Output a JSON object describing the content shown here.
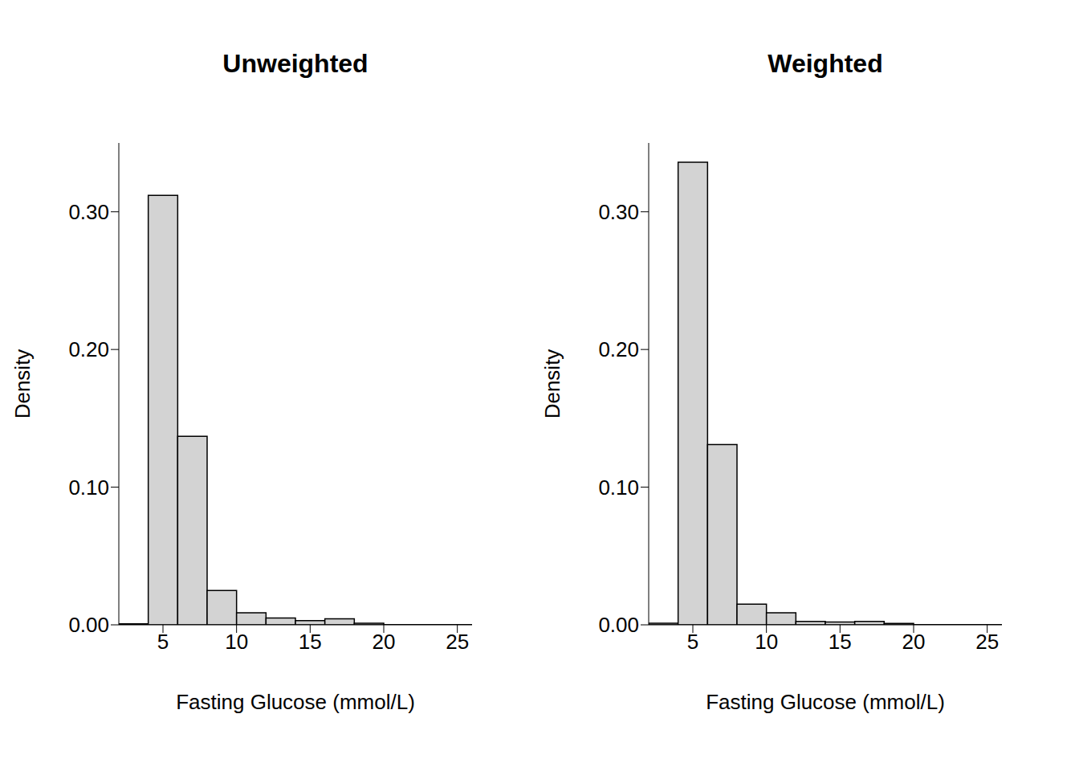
{
  "chart_data": [
    {
      "type": "histogram",
      "title": "Unweighted",
      "x_label": "Fasting Glucose (mmol/L)",
      "y_label": "Density",
      "bins": [
        2,
        4,
        6,
        8,
        10,
        12,
        14,
        16,
        18,
        20,
        22,
        24,
        26
      ],
      "values": [
        0.0007,
        0.312,
        0.137,
        0.025,
        0.0087,
        0.005,
        0.003,
        0.0044,
        0.0012,
        0.0002,
        0.0001,
        0.0002
      ],
      "color": "#d3d3d3",
      "xlim": [
        2,
        26
      ],
      "xticks": [
        5,
        10,
        15,
        20,
        25
      ],
      "ylim": [
        0,
        0.35
      ],
      "yticks": [
        {
          "value": 0,
          "label": "0.00"
        },
        {
          "value": 0.1,
          "label": "0.10"
        },
        {
          "value": 0.2,
          "label": "0.20"
        },
        {
          "value": 0.3,
          "label": "0.30"
        }
      ]
    },
    {
      "type": "histogram",
      "title": "Weighted",
      "x_label": "Fasting Glucose (mmol/L)",
      "y_label": "Density",
      "bins": [
        2,
        4,
        6,
        8,
        10,
        12,
        14,
        16,
        18,
        20,
        22,
        24,
        26
      ],
      "values": [
        0.0012,
        0.336,
        0.131,
        0.015,
        0.0087,
        0.0025,
        0.002,
        0.0025,
        0.001,
        0.0002,
        0.0001,
        0.0002
      ],
      "color": "#d3d3d3",
      "xlim": [
        2,
        26
      ],
      "xticks": [
        5,
        10,
        15,
        20,
        25
      ],
      "ylim": [
        0,
        0.35
      ],
      "yticks": [
        {
          "value": 0,
          "label": "0.00"
        },
        {
          "value": 0.1,
          "label": "0.10"
        },
        {
          "value": 0.2,
          "label": "0.20"
        },
        {
          "value": 0.3,
          "label": "0.30"
        }
      ]
    }
  ]
}
